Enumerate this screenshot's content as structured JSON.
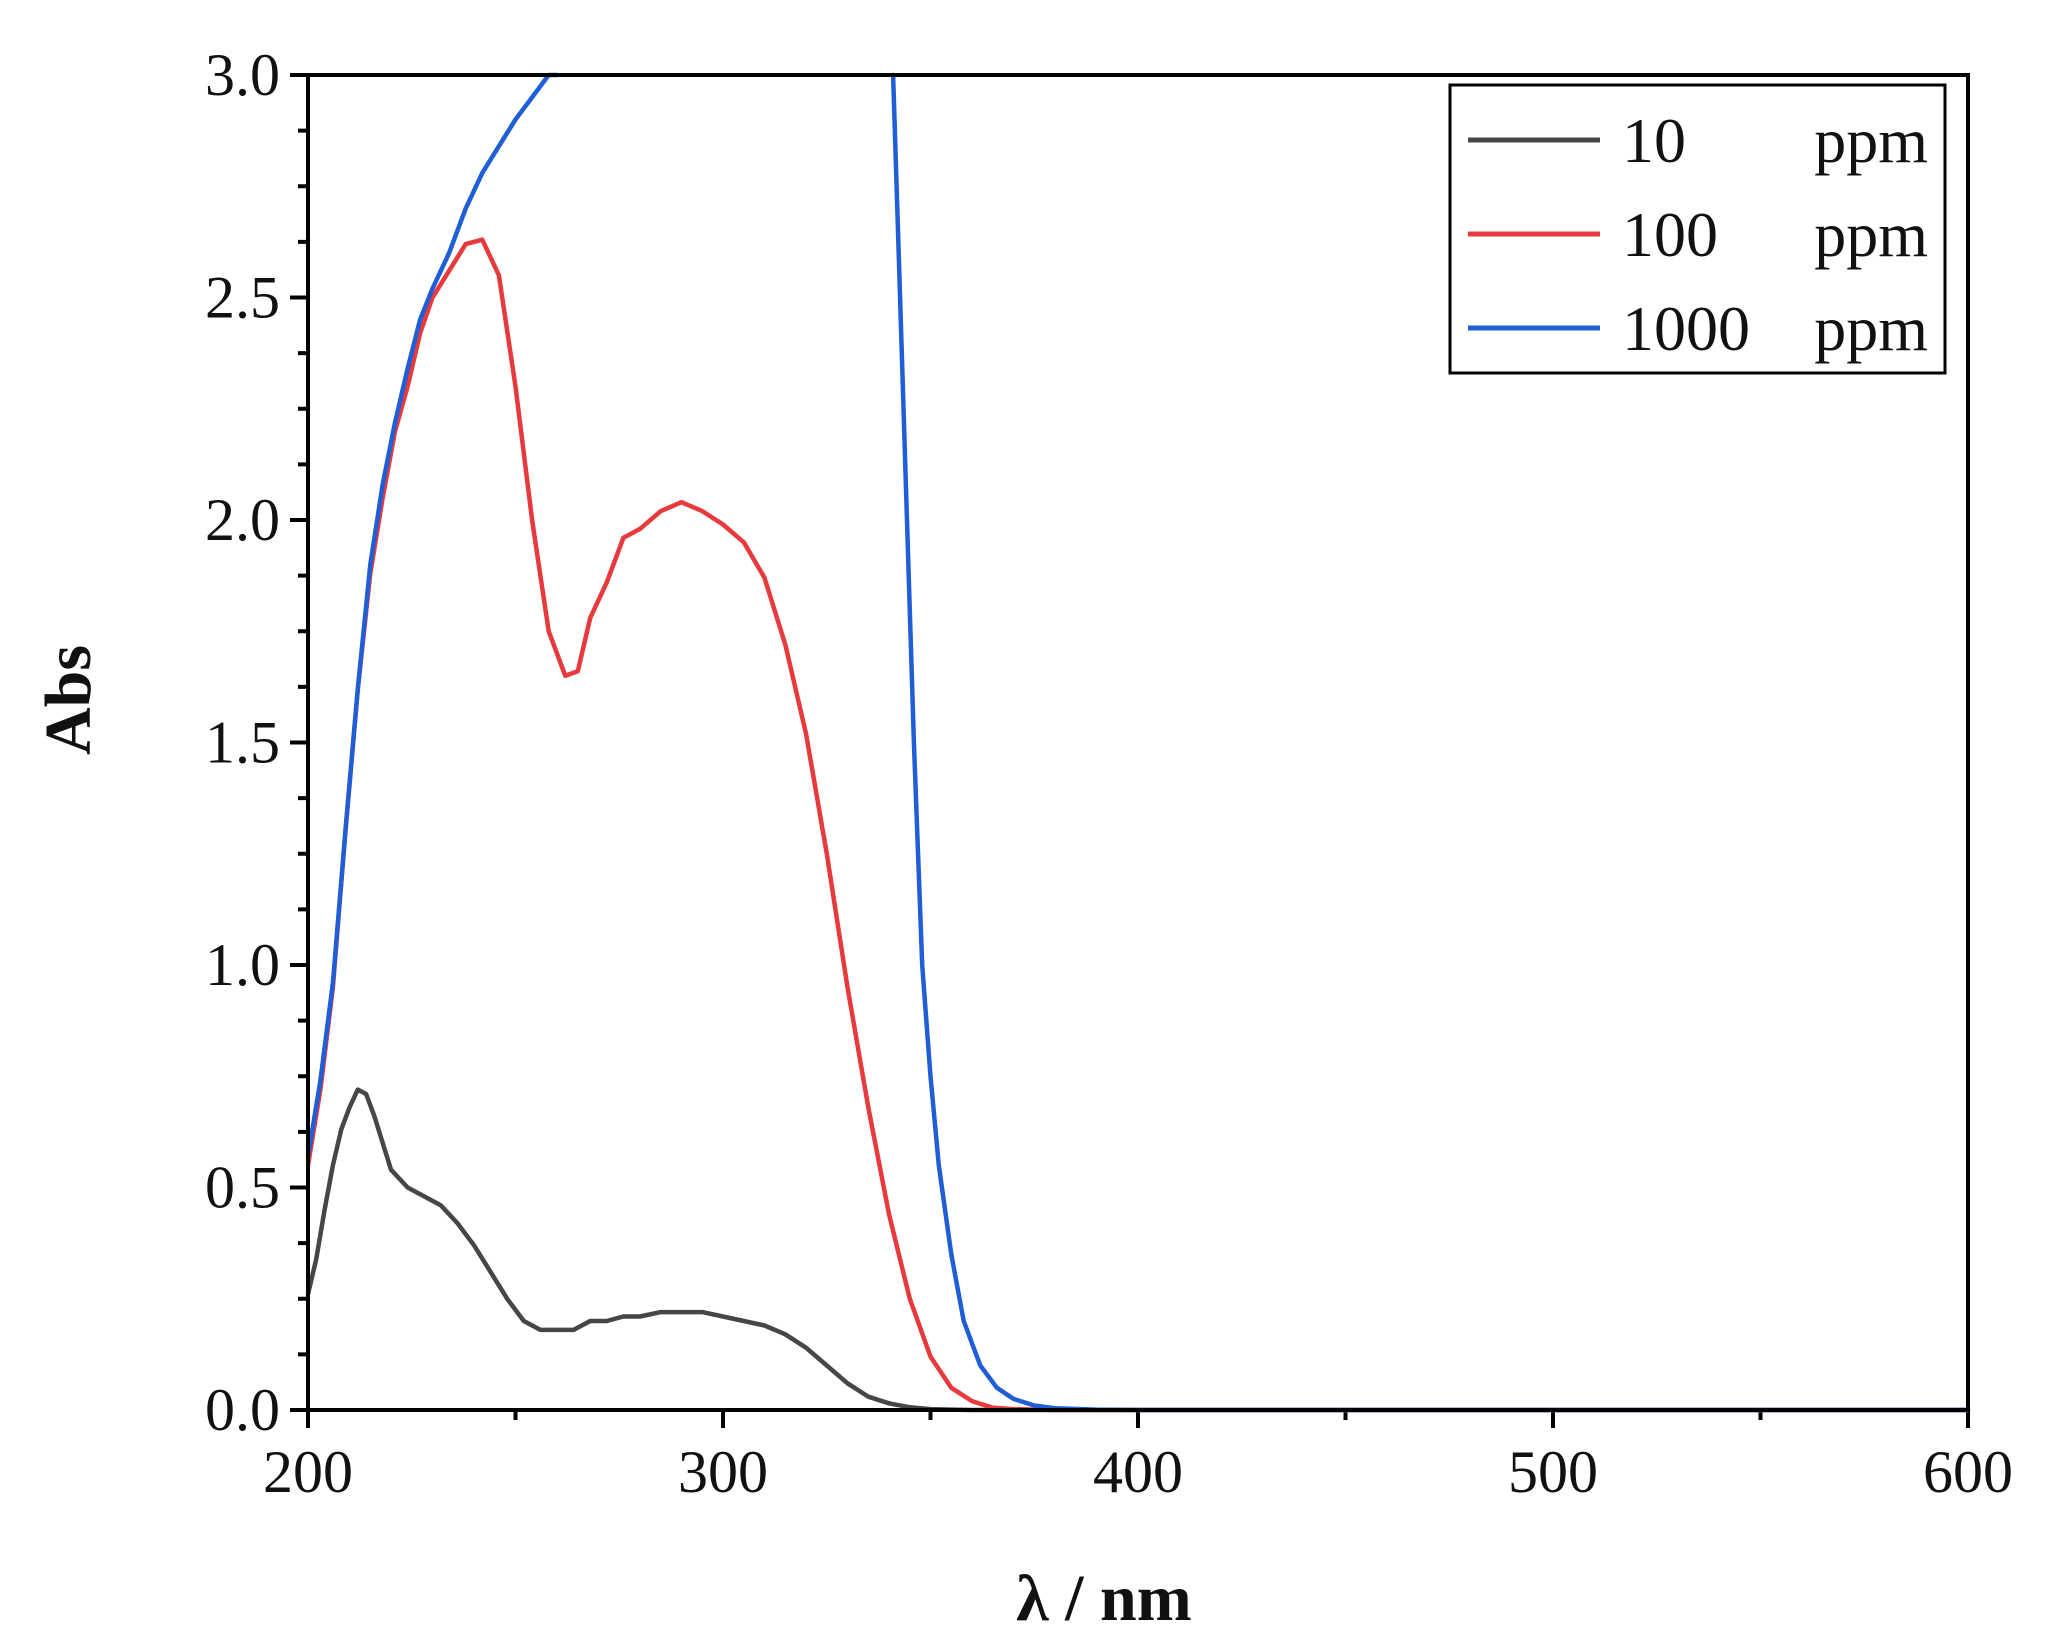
{
  "chart_data": {
    "type": "line",
    "xlabel": "λ / nm",
    "ylabel": "Abs",
    "xlim": [
      200,
      600
    ],
    "ylim": [
      0,
      3.0
    ],
    "xticks": [
      200,
      300,
      400,
      500,
      600
    ],
    "xtick_labels": [
      "200",
      "300",
      "400",
      "500",
      "600"
    ],
    "yticks": [
      0,
      0.5,
      1.0,
      1.5,
      2.0,
      2.5,
      3.0
    ],
    "ytick_labels": [
      "0.0",
      "0.5",
      "1.0",
      "1.5",
      "2.0",
      "2.5",
      "3.0"
    ],
    "grid": false,
    "legend_position": "top-right",
    "series": [
      {
        "name": "10 ppm",
        "legend_conc": "10",
        "legend_unit": "ppm",
        "color": "#464646",
        "x": [
          200,
          202,
          204,
          206,
          208,
          210,
          212,
          214,
          216,
          218,
          220,
          224,
          228,
          232,
          236,
          240,
          244,
          248,
          252,
          256,
          260,
          264,
          268,
          272,
          276,
          280,
          285,
          290,
          295,
          300,
          305,
          310,
          315,
          320,
          325,
          330,
          335,
          340,
          345,
          350,
          355,
          360,
          370,
          380,
          400,
          450,
          500,
          550,
          600
        ],
        "y": [
          0.26,
          0.34,
          0.45,
          0.55,
          0.63,
          0.68,
          0.72,
          0.71,
          0.66,
          0.6,
          0.54,
          0.5,
          0.48,
          0.46,
          0.42,
          0.37,
          0.31,
          0.25,
          0.2,
          0.18,
          0.18,
          0.18,
          0.2,
          0.2,
          0.21,
          0.21,
          0.22,
          0.22,
          0.22,
          0.21,
          0.2,
          0.19,
          0.17,
          0.14,
          0.1,
          0.06,
          0.03,
          0.015,
          0.006,
          0.002,
          0.001,
          0.0,
          0.0,
          0.0,
          0.0,
          0.0,
          0.0,
          0.0,
          0.0
        ]
      },
      {
        "name": "100 ppm",
        "legend_conc": "100",
        "legend_unit": "ppm",
        "color": "#e8393c",
        "x": [
          200,
          203,
          206,
          209,
          212,
          215,
          218,
          221,
          224,
          227,
          230,
          234,
          238,
          242,
          246,
          250,
          254,
          258,
          262,
          265,
          268,
          272,
          276,
          280,
          285,
          290,
          295,
          300,
          305,
          310,
          315,
          320,
          325,
          330,
          335,
          340,
          345,
          350,
          355,
          360,
          365,
          370,
          380,
          400,
          450,
          500,
          550,
          600
        ],
        "y": [
          0.55,
          0.72,
          0.95,
          1.3,
          1.62,
          1.88,
          2.05,
          2.2,
          2.3,
          2.42,
          2.5,
          2.56,
          2.62,
          2.63,
          2.55,
          2.3,
          2.0,
          1.75,
          1.65,
          1.66,
          1.78,
          1.86,
          1.96,
          1.98,
          2.02,
          2.04,
          2.02,
          1.99,
          1.95,
          1.87,
          1.72,
          1.52,
          1.25,
          0.95,
          0.68,
          0.44,
          0.25,
          0.12,
          0.05,
          0.02,
          0.005,
          0.002,
          0.0,
          0.0,
          0.0,
          0.0,
          0.0,
          0.0
        ]
      },
      {
        "name": "1000 ppm",
        "legend_conc": "1000",
        "legend_unit": "ppm",
        "color": "#1f5ed6",
        "x": [
          200,
          203,
          206,
          209,
          212,
          215,
          218,
          221,
          224,
          227,
          230,
          234,
          238,
          242,
          246,
          250,
          254,
          258,
          260,
          341,
          342,
          344,
          346,
          348,
          350,
          352,
          355,
          358,
          362,
          366,
          370,
          375,
          380,
          390,
          400,
          450,
          500,
          550,
          600
        ],
        "y": [
          0.57,
          0.74,
          0.96,
          1.3,
          1.62,
          1.9,
          2.08,
          2.22,
          2.34,
          2.45,
          2.52,
          2.6,
          2.7,
          2.78,
          2.84,
          2.9,
          2.95,
          3.0,
          3.0,
          3.0,
          2.7,
          2.1,
          1.5,
          1.0,
          0.75,
          0.55,
          0.35,
          0.2,
          0.1,
          0.05,
          0.025,
          0.01,
          0.004,
          0.001,
          0.0,
          0.0,
          0.0,
          0.0,
          0.0
        ],
        "break_after_x": 260
      }
    ]
  }
}
